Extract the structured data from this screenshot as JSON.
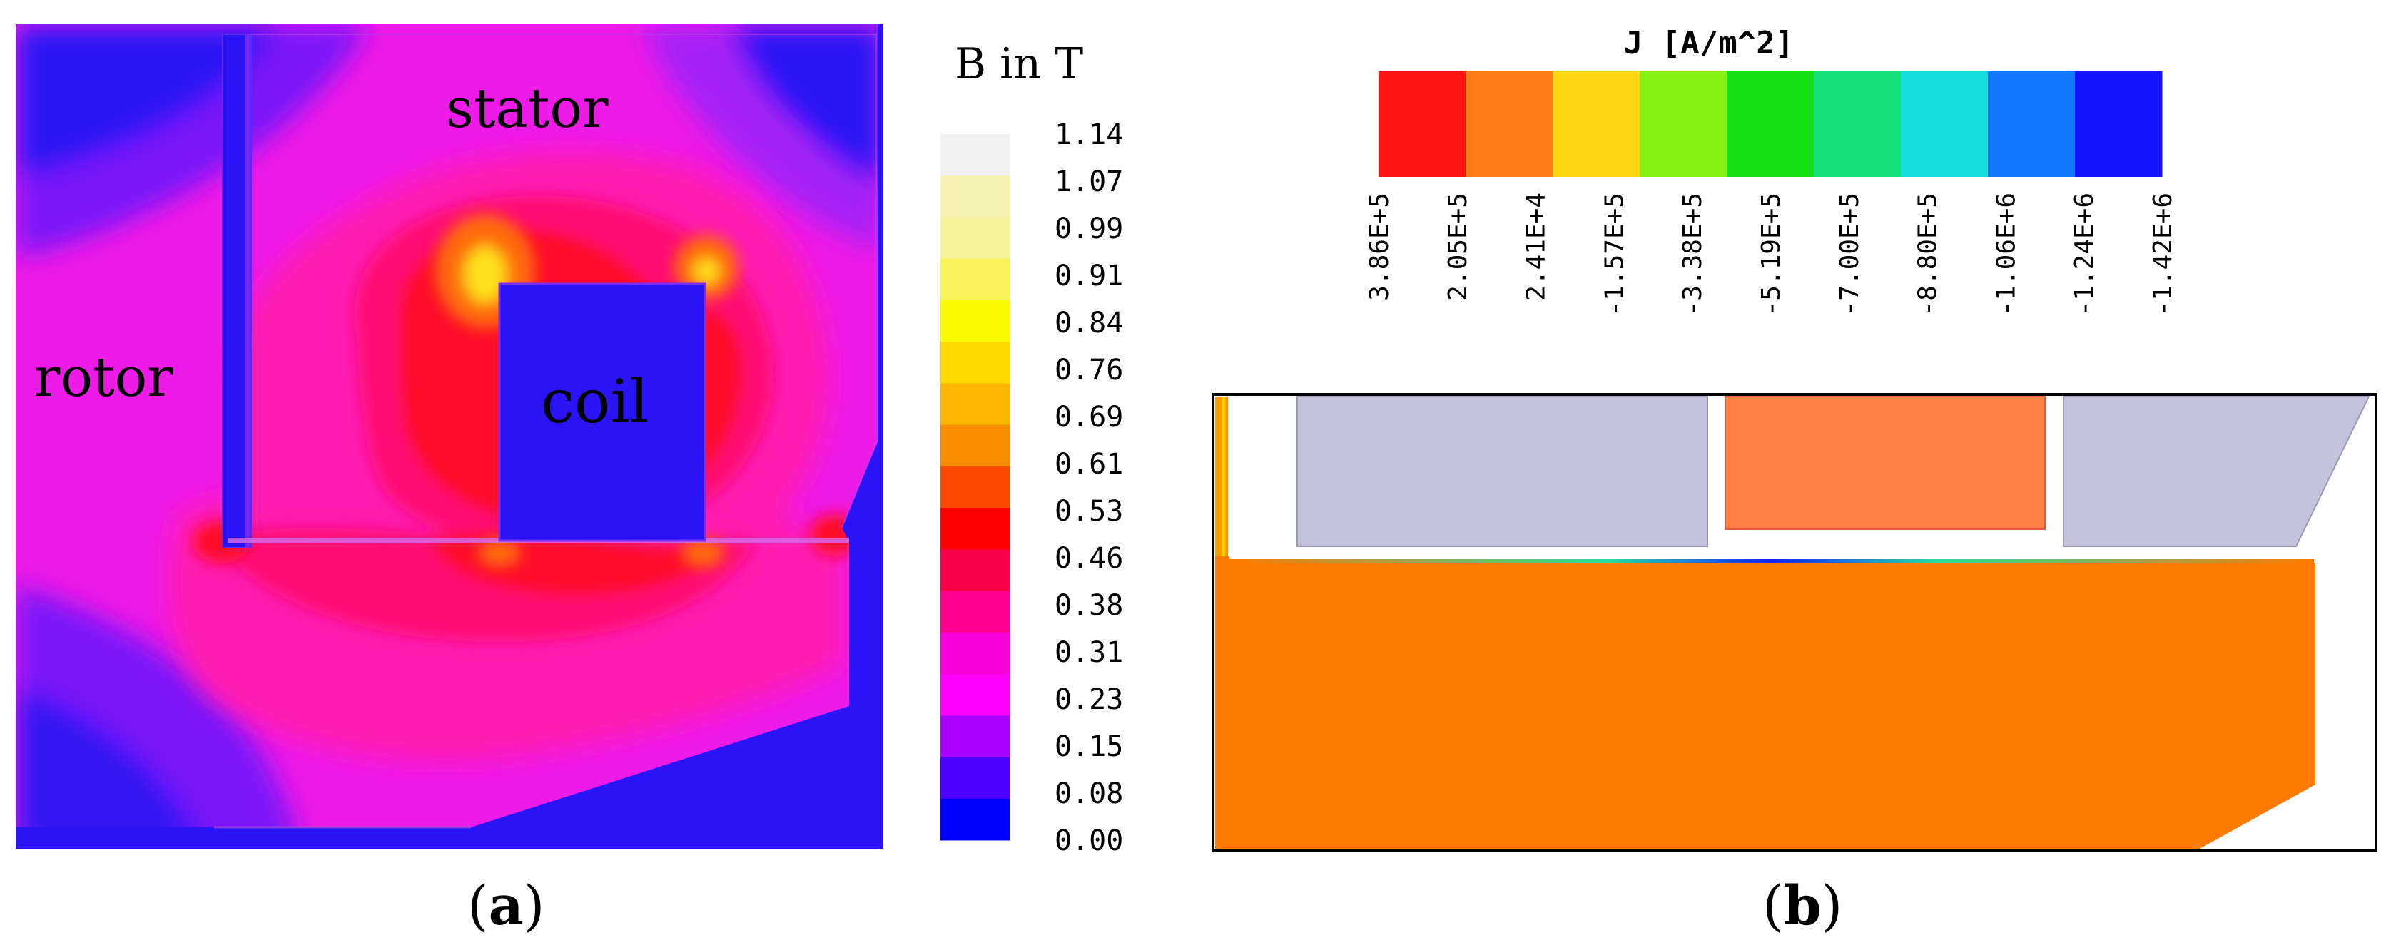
{
  "panel_a": {
    "caption": "(a)",
    "caption_letter": "a",
    "labels": {
      "stator": "stator",
      "rotor": "rotor",
      "coil": "coil"
    },
    "legend_title": "B in T",
    "legend_ticks": [
      "1.14",
      "1.07",
      "0.99",
      "0.91",
      "0.84",
      "0.76",
      "0.69",
      "0.61",
      "0.53",
      "0.46",
      "0.38",
      "0.31",
      "0.23",
      "0.15",
      "0.08",
      "0.00"
    ],
    "legend_colors": [
      "#f2f2f2",
      "#f6f2b4",
      "#f5f39a",
      "#f8f35a",
      "#fdfb00",
      "#fed900",
      "#fdb700",
      "#f98f00",
      "#fa4b00",
      "#fe0000",
      "#f70048",
      "#ff0090",
      "#f800d8",
      "#ff00ff",
      "#aa00ff",
      "#4d00ff",
      "#0000ff"
    ],
    "field_colors": {
      "blue": "#2a14f6",
      "violet": "#7a14f8",
      "purple": "#a524f6",
      "magenta": "#ee1ae7",
      "pink": "#ff1cb0",
      "hotpink": "#ff0a74",
      "red": "#ff0a2a",
      "orange": "#ff6a08",
      "yellow": "#ffe11a"
    }
  },
  "panel_b": {
    "caption": "(b)",
    "caption_letter": "b",
    "legend_title": "J [A/m^2]",
    "legend_ticks": [
      "3.86E+5",
      "2.05E+5",
      "2.41E+4",
      "-1.57E+5",
      "-3.38E+5",
      "-5.19E+5",
      "-7.00E+5",
      "-8.80E+5",
      "-1.06E+6",
      "-1.24E+6",
      "-1.42E+6"
    ],
    "legend_colors": [
      "#ff1414",
      "#ff7a14",
      "#ffd714",
      "#85f014",
      "#14e014",
      "#14e07a",
      "#14dcdc",
      "#1478ff",
      "#1414ff"
    ],
    "region_colors": {
      "frame": "#000000",
      "conductor": "#ff7a00",
      "iron": "#c3c3dc",
      "coil": "#ff7f44",
      "edge": "#ffc000"
    }
  }
}
